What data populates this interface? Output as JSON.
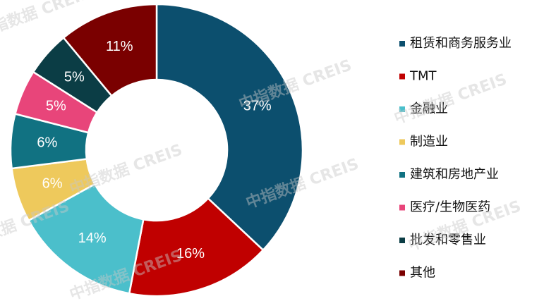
{
  "chart_data": {
    "type": "donut",
    "categories": [
      "租赁和商务服务业",
      "TMT",
      "金融业",
      "制造业",
      "建筑和房地产业",
      "医疗/生物医药",
      "批发和零售业",
      "其他"
    ],
    "values": [
      37,
      16,
      14,
      6,
      6,
      5,
      5,
      11
    ],
    "value_labels": [
      "37%",
      "16%",
      "14%",
      "6%",
      "6%",
      "5%",
      "5%",
      "11%"
    ],
    "colors": [
      "#0c4f6e",
      "#c00000",
      "#4bbfcb",
      "#eec95c",
      "#117282",
      "#e8457a",
      "#0b3d45",
      "#7a0000"
    ],
    "legend": "right"
  },
  "watermark": "中指数据 CREIS"
}
